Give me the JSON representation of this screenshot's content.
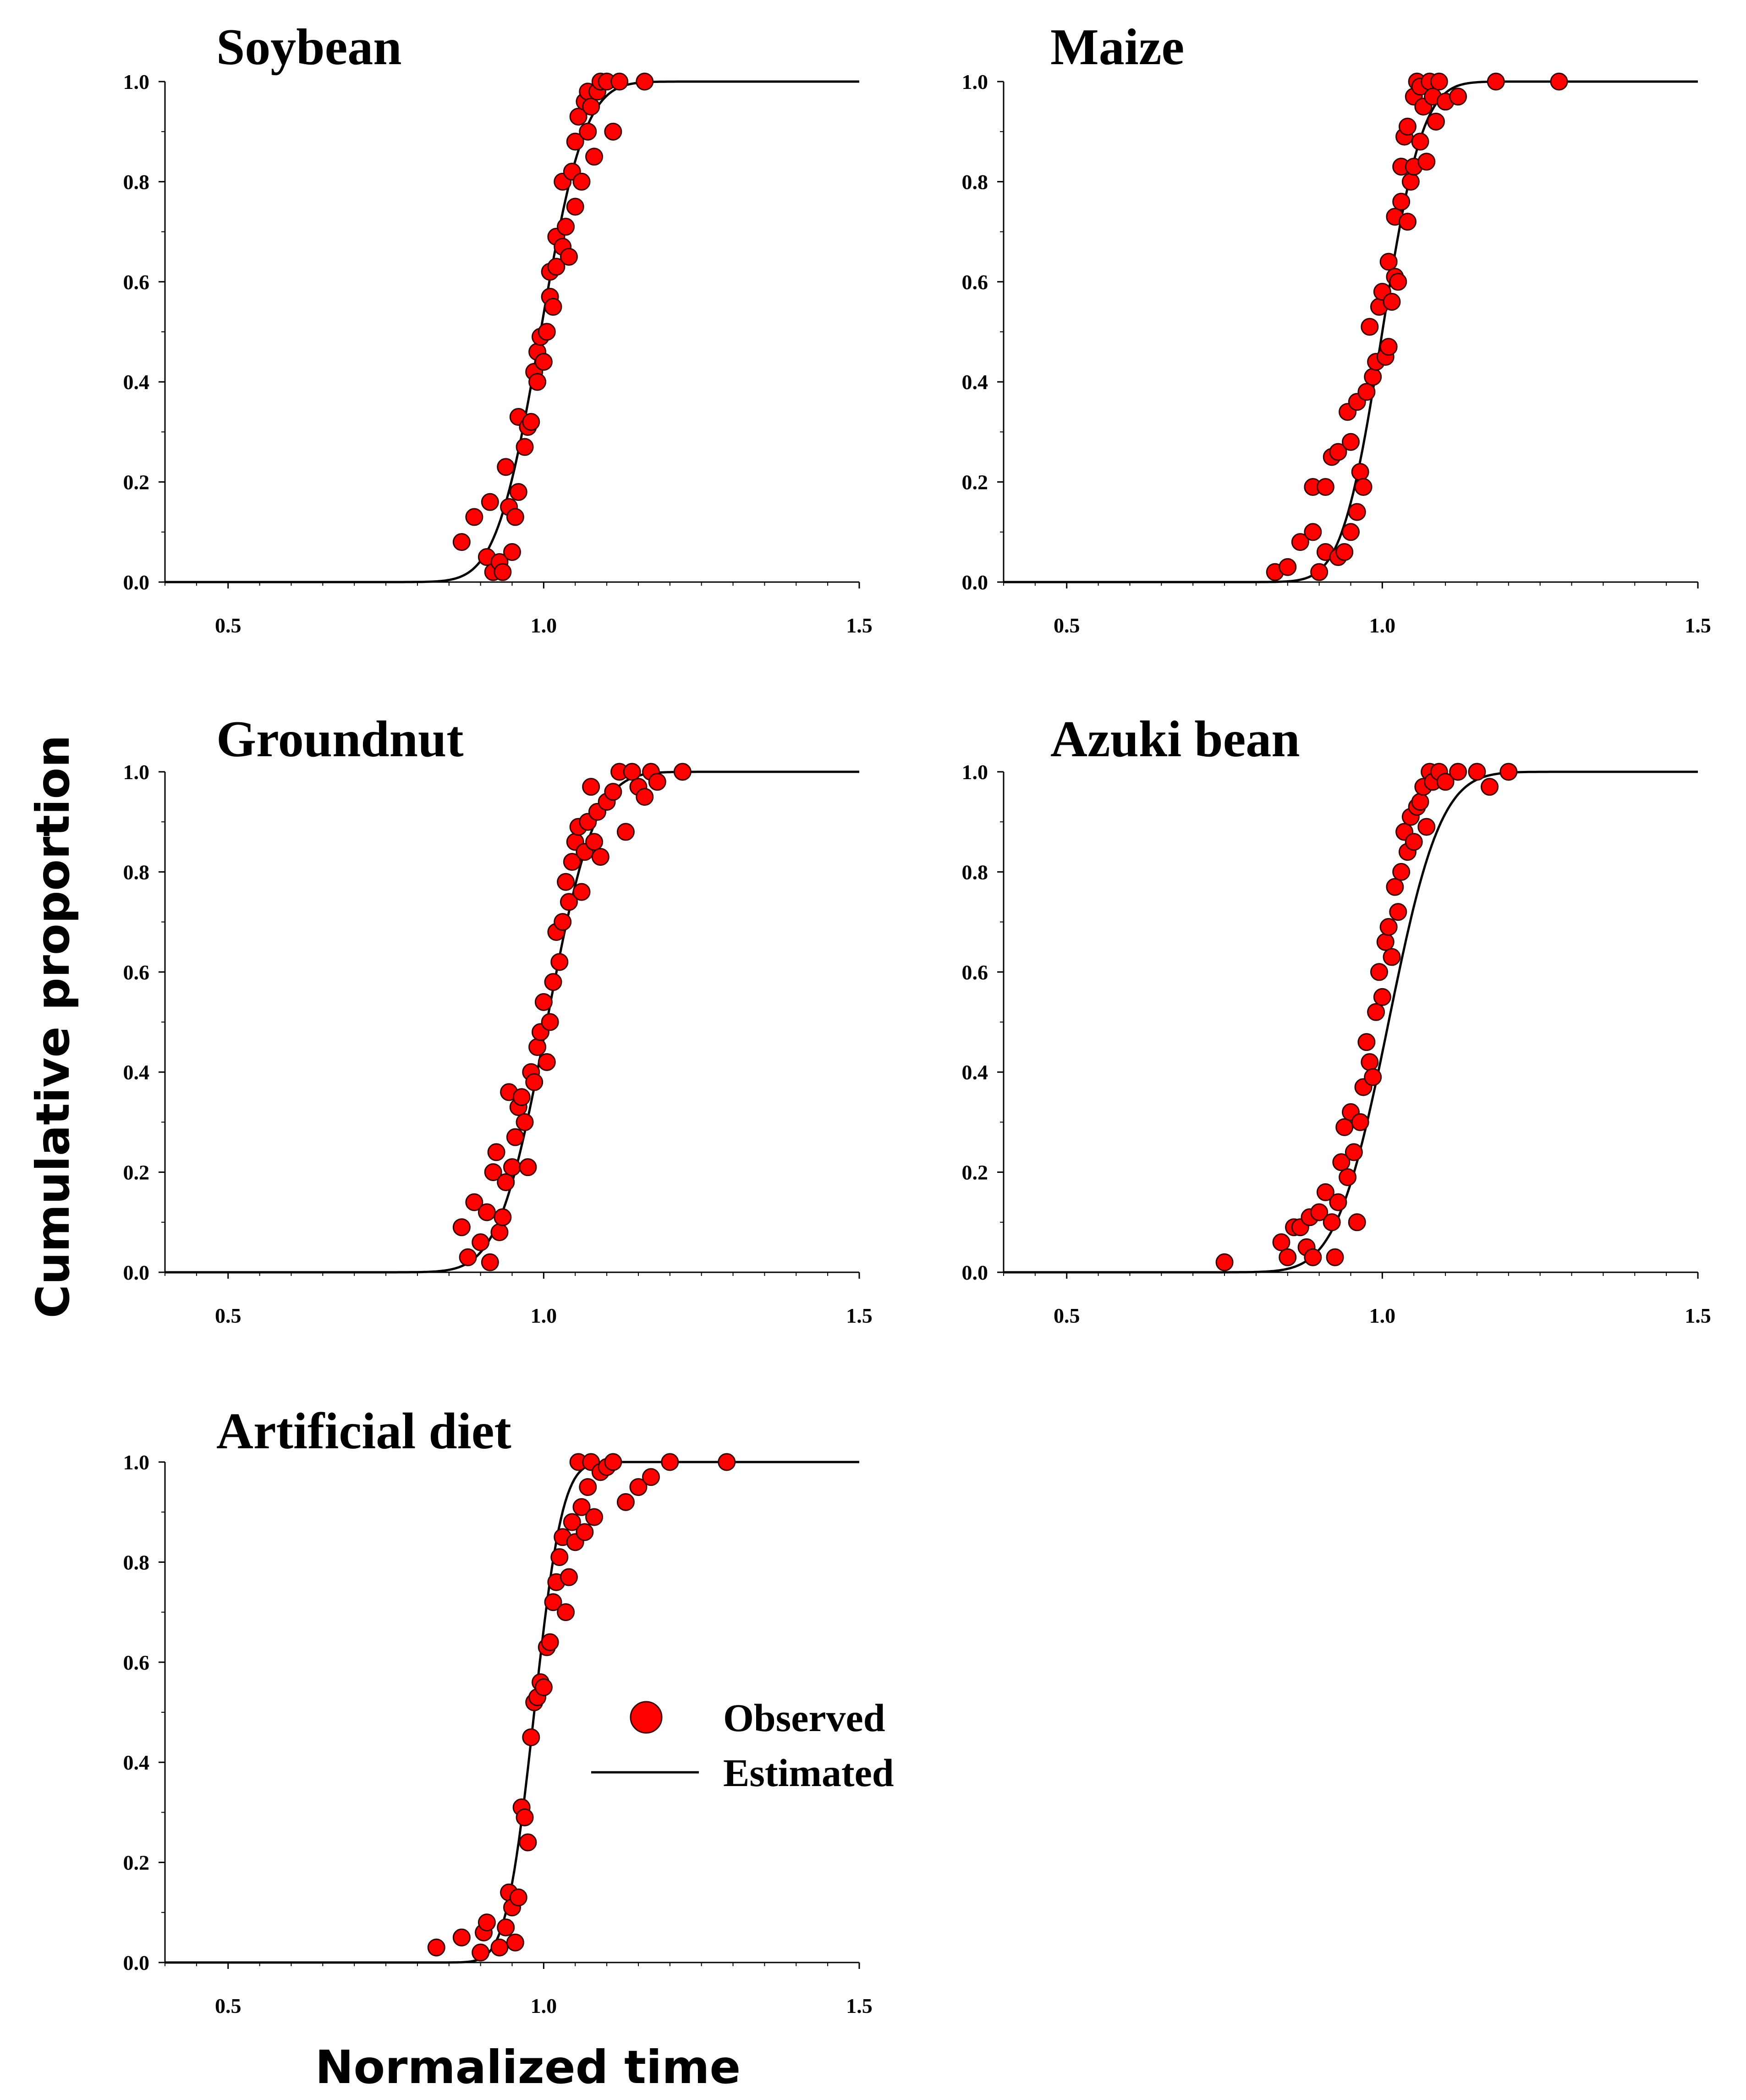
{
  "chart_data": {
    "type": "scatter",
    "ylabel": "Cumulative proportion",
    "xlabel": "Normalized time",
    "xlim": [
      0.4,
      1.5
    ],
    "ylim": [
      0.0,
      1.0
    ],
    "x_ticks": [
      "0.5",
      "1.0",
      "1.5"
    ],
    "y_ticks": [
      "0.0",
      "0.2",
      "0.4",
      "0.6",
      "0.8",
      "1.0"
    ],
    "legend": {
      "observed": "Observed",
      "estimated": "Estimated"
    },
    "panels": [
      {
        "title": "Soybean",
        "curve": {
          "mu": 0.995,
          "s": 0.055
        },
        "observed": [
          [
            0.87,
            0.08
          ],
          [
            0.89,
            0.13
          ],
          [
            0.91,
            0.05
          ],
          [
            0.915,
            0.16
          ],
          [
            0.92,
            0.02
          ],
          [
            0.93,
            0.04
          ],
          [
            0.935,
            0.02
          ],
          [
            0.94,
            0.23
          ],
          [
            0.945,
            0.15
          ],
          [
            0.95,
            0.06
          ],
          [
            0.955,
            0.13
          ],
          [
            0.96,
            0.18
          ],
          [
            0.96,
            0.33
          ],
          [
            0.97,
            0.27
          ],
          [
            0.975,
            0.31
          ],
          [
            0.98,
            0.32
          ],
          [
            0.985,
            0.42
          ],
          [
            0.99,
            0.46
          ],
          [
            0.99,
            0.4
          ],
          [
            0.995,
            0.49
          ],
          [
            1.0,
            0.44
          ],
          [
            1.005,
            0.5
          ],
          [
            1.01,
            0.57
          ],
          [
            1.01,
            0.62
          ],
          [
            1.015,
            0.55
          ],
          [
            1.02,
            0.69
          ],
          [
            1.02,
            0.63
          ],
          [
            1.03,
            0.67
          ],
          [
            1.03,
            0.8
          ],
          [
            1.035,
            0.71
          ],
          [
            1.04,
            0.65
          ],
          [
            1.045,
            0.82
          ],
          [
            1.05,
            0.88
          ],
          [
            1.05,
            0.75
          ],
          [
            1.055,
            0.93
          ],
          [
            1.06,
            0.8
          ],
          [
            1.065,
            0.96
          ],
          [
            1.07,
            0.98
          ],
          [
            1.07,
            0.9
          ],
          [
            1.075,
            0.95
          ],
          [
            1.08,
            0.85
          ],
          [
            1.085,
            0.98
          ],
          [
            1.09,
            1.0
          ],
          [
            1.1,
            1.0
          ],
          [
            1.11,
            0.9
          ],
          [
            1.12,
            1.0
          ],
          [
            1.16,
            1.0
          ]
        ]
      },
      {
        "title": "Maize",
        "curve": {
          "mu": 1.0,
          "s": 0.05
        },
        "observed": [
          [
            0.83,
            0.02
          ],
          [
            0.85,
            0.03
          ],
          [
            0.87,
            0.08
          ],
          [
            0.89,
            0.1
          ],
          [
            0.89,
            0.19
          ],
          [
            0.9,
            0.02
          ],
          [
            0.91,
            0.06
          ],
          [
            0.91,
            0.19
          ],
          [
            0.92,
            0.25
          ],
          [
            0.93,
            0.05
          ],
          [
            0.93,
            0.26
          ],
          [
            0.94,
            0.06
          ],
          [
            0.945,
            0.34
          ],
          [
            0.95,
            0.28
          ],
          [
            0.95,
            0.1
          ],
          [
            0.96,
            0.14
          ],
          [
            0.96,
            0.36
          ],
          [
            0.965,
            0.22
          ],
          [
            0.97,
            0.19
          ],
          [
            0.975,
            0.38
          ],
          [
            0.98,
            0.51
          ],
          [
            0.985,
            0.41
          ],
          [
            0.99,
            0.44
          ],
          [
            0.995,
            0.55
          ],
          [
            1.0,
            0.58
          ],
          [
            1.005,
            0.45
          ],
          [
            1.01,
            0.47
          ],
          [
            1.01,
            0.64
          ],
          [
            1.015,
            0.56
          ],
          [
            1.02,
            0.61
          ],
          [
            1.02,
            0.73
          ],
          [
            1.025,
            0.6
          ],
          [
            1.03,
            0.76
          ],
          [
            1.03,
            0.83
          ],
          [
            1.035,
            0.89
          ],
          [
            1.04,
            0.91
          ],
          [
            1.04,
            0.72
          ],
          [
            1.045,
            0.8
          ],
          [
            1.05,
            0.97
          ],
          [
            1.05,
            0.83
          ],
          [
            1.055,
            1.0
          ],
          [
            1.06,
            0.88
          ],
          [
            1.06,
            0.99
          ],
          [
            1.065,
            0.95
          ],
          [
            1.07,
            0.84
          ],
          [
            1.075,
            1.0
          ],
          [
            1.08,
            0.97
          ],
          [
            1.085,
            0.92
          ],
          [
            1.09,
            1.0
          ],
          [
            1.1,
            0.96
          ],
          [
            1.12,
            0.97
          ],
          [
            1.18,
            1.0
          ],
          [
            1.28,
            1.0
          ]
        ]
      },
      {
        "title": "Groundnut",
        "curve": {
          "mu": 1.005,
          "s": 0.06
        },
        "observed": [
          [
            0.87,
            0.09
          ],
          [
            0.88,
            0.03
          ],
          [
            0.89,
            0.14
          ],
          [
            0.9,
            0.06
          ],
          [
            0.91,
            0.12
          ],
          [
            0.915,
            0.02
          ],
          [
            0.92,
            0.2
          ],
          [
            0.925,
            0.24
          ],
          [
            0.93,
            0.08
          ],
          [
            0.935,
            0.11
          ],
          [
            0.94,
            0.18
          ],
          [
            0.945,
            0.36
          ],
          [
            0.95,
            0.21
          ],
          [
            0.955,
            0.27
          ],
          [
            0.96,
            0.33
          ],
          [
            0.965,
            0.35
          ],
          [
            0.97,
            0.3
          ],
          [
            0.975,
            0.21
          ],
          [
            0.98,
            0.4
          ],
          [
            0.985,
            0.38
          ],
          [
            0.99,
            0.45
          ],
          [
            0.995,
            0.48
          ],
          [
            1.0,
            0.54
          ],
          [
            1.005,
            0.42
          ],
          [
            1.01,
            0.5
          ],
          [
            1.015,
            0.58
          ],
          [
            1.02,
            0.68
          ],
          [
            1.025,
            0.62
          ],
          [
            1.03,
            0.7
          ],
          [
            1.035,
            0.78
          ],
          [
            1.04,
            0.74
          ],
          [
            1.045,
            0.82
          ],
          [
            1.05,
            0.86
          ],
          [
            1.055,
            0.89
          ],
          [
            1.06,
            0.76
          ],
          [
            1.065,
            0.84
          ],
          [
            1.07,
            0.9
          ],
          [
            1.075,
            0.97
          ],
          [
            1.08,
            0.86
          ],
          [
            1.085,
            0.92
          ],
          [
            1.09,
            0.83
          ],
          [
            1.1,
            0.94
          ],
          [
            1.11,
            0.96
          ],
          [
            1.12,
            1.0
          ],
          [
            1.13,
            0.88
          ],
          [
            1.14,
            1.0
          ],
          [
            1.15,
            0.97
          ],
          [
            1.16,
            0.95
          ],
          [
            1.17,
            1.0
          ],
          [
            1.18,
            0.98
          ],
          [
            1.22,
            1.0
          ]
        ]
      },
      {
        "title": "Azuki bean",
        "curve": {
          "mu": 1.01,
          "s": 0.065
        },
        "observed": [
          [
            0.75,
            0.02
          ],
          [
            0.84,
            0.06
          ],
          [
            0.85,
            0.03
          ],
          [
            0.86,
            0.09
          ],
          [
            0.87,
            0.09
          ],
          [
            0.88,
            0.05
          ],
          [
            0.885,
            0.11
          ],
          [
            0.89,
            0.03
          ],
          [
            0.9,
            0.12
          ],
          [
            0.91,
            0.16
          ],
          [
            0.92,
            0.1
          ],
          [
            0.925,
            0.03
          ],
          [
            0.93,
            0.14
          ],
          [
            0.935,
            0.22
          ],
          [
            0.94,
            0.29
          ],
          [
            0.945,
            0.19
          ],
          [
            0.95,
            0.32
          ],
          [
            0.955,
            0.24
          ],
          [
            0.96,
            0.1
          ],
          [
            0.965,
            0.3
          ],
          [
            0.97,
            0.37
          ],
          [
            0.975,
            0.46
          ],
          [
            0.98,
            0.42
          ],
          [
            0.985,
            0.39
          ],
          [
            0.99,
            0.52
          ],
          [
            0.995,
            0.6
          ],
          [
            1.0,
            0.55
          ],
          [
            1.005,
            0.66
          ],
          [
            1.01,
            0.69
          ],
          [
            1.015,
            0.63
          ],
          [
            1.02,
            0.77
          ],
          [
            1.025,
            0.72
          ],
          [
            1.03,
            0.8
          ],
          [
            1.035,
            0.88
          ],
          [
            1.04,
            0.84
          ],
          [
            1.045,
            0.91
          ],
          [
            1.05,
            0.86
          ],
          [
            1.055,
            0.93
          ],
          [
            1.06,
            0.94
          ],
          [
            1.065,
            0.97
          ],
          [
            1.07,
            0.89
          ],
          [
            1.075,
            1.0
          ],
          [
            1.08,
            0.98
          ],
          [
            1.09,
            1.0
          ],
          [
            1.1,
            0.98
          ],
          [
            1.12,
            1.0
          ],
          [
            1.15,
            1.0
          ],
          [
            1.17,
            0.97
          ],
          [
            1.2,
            1.0
          ]
        ]
      },
      {
        "title": "Artificial diet",
        "curve": {
          "mu": 0.985,
          "s": 0.035
        },
        "observed": [
          [
            0.83,
            0.03
          ],
          [
            0.87,
            0.05
          ],
          [
            0.9,
            0.02
          ],
          [
            0.905,
            0.06
          ],
          [
            0.91,
            0.08
          ],
          [
            0.93,
            0.03
          ],
          [
            0.94,
            0.07
          ],
          [
            0.945,
            0.14
          ],
          [
            0.95,
            0.11
          ],
          [
            0.955,
            0.04
          ],
          [
            0.96,
            0.13
          ],
          [
            0.965,
            0.31
          ],
          [
            0.97,
            0.29
          ],
          [
            0.975,
            0.24
          ],
          [
            0.98,
            0.45
          ],
          [
            0.985,
            0.52
          ],
          [
            0.99,
            0.53
          ],
          [
            0.995,
            0.56
          ],
          [
            1.0,
            0.55
          ],
          [
            1.005,
            0.63
          ],
          [
            1.01,
            0.64
          ],
          [
            1.015,
            0.72
          ],
          [
            1.02,
            0.76
          ],
          [
            1.025,
            0.81
          ],
          [
            1.03,
            0.85
          ],
          [
            1.035,
            0.7
          ],
          [
            1.04,
            0.77
          ],
          [
            1.045,
            0.88
          ],
          [
            1.05,
            0.84
          ],
          [
            1.055,
            1.0
          ],
          [
            1.06,
            0.91
          ],
          [
            1.065,
            0.86
          ],
          [
            1.07,
            0.95
          ],
          [
            1.075,
            1.0
          ],
          [
            1.08,
            0.89
          ],
          [
            1.09,
            0.98
          ],
          [
            1.1,
            0.99
          ],
          [
            1.11,
            1.0
          ],
          [
            1.13,
            0.92
          ],
          [
            1.15,
            0.95
          ],
          [
            1.17,
            0.97
          ],
          [
            1.2,
            1.0
          ],
          [
            1.29,
            1.0
          ]
        ]
      }
    ]
  }
}
